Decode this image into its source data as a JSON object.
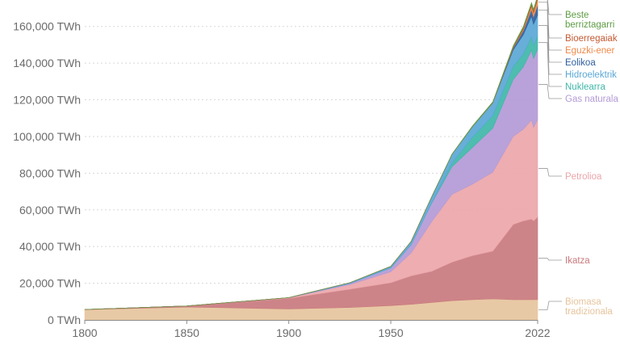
{
  "chart_data": {
    "type": "area",
    "stacked": true,
    "title": "",
    "xlabel": "",
    "ylabel": "",
    "xlim": [
      1800,
      2022
    ],
    "ylim": [
      0,
      170000
    ],
    "x_ticks": [
      "1800",
      "1850",
      "1900",
      "1950",
      "2022"
    ],
    "x_tick_values": [
      1800,
      1850,
      1900,
      1950,
      2022
    ],
    "y_ticks": [
      "0 TWh",
      "20,000 TWh",
      "40,000 TWh",
      "60,000 TWh",
      "80,000 TWh",
      "100,000 TWh",
      "120,000 TWh",
      "140,000 TWh",
      "160,000 TWh"
    ],
    "y_tick_values": [
      0,
      20000,
      40000,
      60000,
      80000,
      100000,
      120000,
      140000,
      160000
    ],
    "grid": "horizontal",
    "legend_placement": "right",
    "x": [
      1800,
      1850,
      1900,
      1930,
      1950,
      1960,
      1970,
      1980,
      1990,
      2000,
      2010,
      2015,
      2019,
      2020,
      2022
    ],
    "series": [
      {
        "name": "Biomasa tradizionala",
        "color": "#e6c49d",
        "values": [
          5600,
          7000,
          6000,
          6800,
          7800,
          8500,
          9500,
          10500,
          11000,
          11500,
          11000,
          11000,
          11000,
          11000,
          11100
        ]
      },
      {
        "name": "Ikatza",
        "color": "#c97a7e",
        "values": [
          100,
          600,
          5800,
          10000,
          12500,
          15500,
          17000,
          21000,
          24000,
          26000,
          41000,
          43000,
          44000,
          43000,
          45000
        ]
      },
      {
        "name": "Petrolioa",
        "color": "#eba6aa",
        "values": [
          0,
          0,
          250,
          2500,
          6000,
          12500,
          27000,
          37000,
          39000,
          43000,
          48000,
          50000,
          54000,
          51000,
          53000
        ]
      },
      {
        "name": "Gas naturala",
        "color": "#b39ad6",
        "values": [
          0,
          0,
          80,
          600,
          2000,
          4500,
          10000,
          15000,
          20000,
          24000,
          31000,
          34000,
          38000,
          37500,
          38500
        ]
      },
      {
        "name": "Nuklearra",
        "color": "#3fb6a8",
        "values": [
          0,
          0,
          0,
          0,
          0,
          10,
          200,
          2000,
          5500,
          6800,
          7200,
          7000,
          7400,
          7200,
          7200
        ]
      },
      {
        "name": "Hidroelektrikoa",
        "color": "#5aa7d6",
        "values": [
          0,
          0,
          30,
          400,
          900,
          1800,
          3300,
          4800,
          5800,
          7000,
          9000,
          10500,
          11200,
          11500,
          11500
        ]
      },
      {
        "name": "Eolikoa",
        "color": "#2f5f9e",
        "values": [
          0,
          0,
          0,
          0,
          0,
          0,
          0,
          0,
          10,
          80,
          900,
          2200,
          3600,
          4000,
          5200
        ]
      },
      {
        "name": "Eguzki-energia",
        "color": "#f08a4b",
        "values": [
          0,
          0,
          0,
          0,
          0,
          0,
          0,
          0,
          0,
          5,
          100,
          700,
          1900,
          2300,
          3400
        ]
      },
      {
        "name": "Bioerregaiak",
        "color": "#c45a35",
        "values": [
          0,
          0,
          0,
          0,
          0,
          0,
          0,
          0,
          30,
          100,
          600,
          950,
          1100,
          1050,
          1100
        ]
      },
      {
        "name": "Beste berriztagarri batzuk",
        "color": "#5e9c44",
        "values": [
          0,
          0,
          0,
          0,
          0,
          0,
          0,
          100,
          300,
          400,
          600,
          700,
          800,
          850,
          900
        ]
      }
    ],
    "legend_labels": [
      {
        "series": "Beste berriztagarri batzuk",
        "lines": [
          "Beste",
          "berriztagarri"
        ]
      },
      {
        "series": "Bioerregaiak",
        "lines": [
          "Bioerregaiak"
        ]
      },
      {
        "series": "Eguzki-energia",
        "lines": [
          "Eguzki-ener"
        ]
      },
      {
        "series": "Eolikoa",
        "lines": [
          "Eolikoa"
        ]
      },
      {
        "series": "Hidroelektrikoa",
        "lines": [
          "Hidroelektrik"
        ]
      },
      {
        "series": "Nuklearra",
        "lines": [
          "Nuklearra"
        ]
      },
      {
        "series": "Gas naturala",
        "lines": [
          "Gas naturala"
        ]
      },
      {
        "series": "Petrolioa",
        "lines": [
          "Petrolioa"
        ]
      },
      {
        "series": "Ikatza",
        "lines": [
          "Ikatza"
        ]
      },
      {
        "series": "Biomasa tradizionala",
        "lines": [
          "Biomasa",
          "tradizionala"
        ]
      }
    ]
  }
}
